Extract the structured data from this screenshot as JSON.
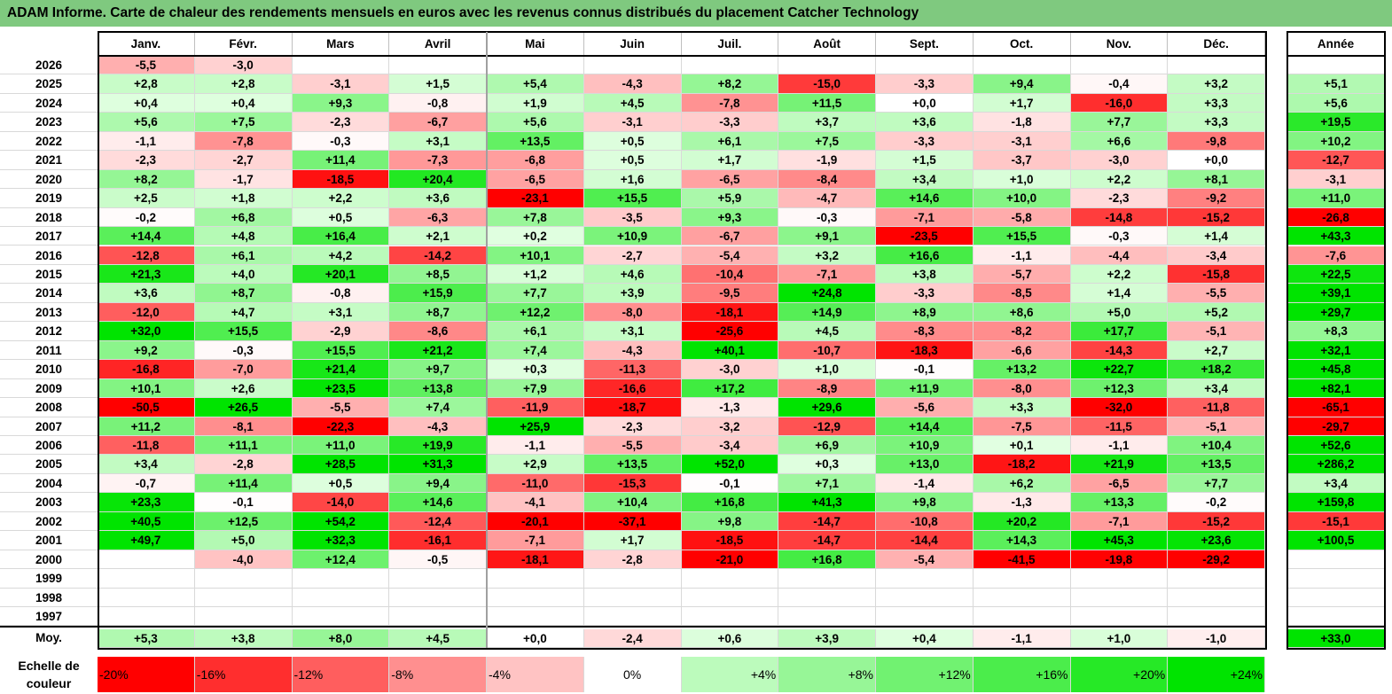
{
  "title": "ADAM Informe. Carte de chaleur des rendements mensuels en euros avec les revenus connus distribués du placement Catcher Technology",
  "colors": {
    "title_bg": "#7fc97f",
    "strong_red": "#ff0000",
    "strong_green": "#00e000",
    "neutral": "#ffffff"
  },
  "chart_data": {
    "type": "heatmap",
    "title": "ADAM Informe. Carte de chaleur des rendements mensuels en euros avec les revenus connus distribués du placement Catcher Technology",
    "months": [
      "Janv.",
      "Févr.",
      "Mars",
      "Avril",
      "Mai",
      "Juin",
      "Juil.",
      "Août",
      "Sept.",
      "Oct.",
      "Nov.",
      "Déc."
    ],
    "year_header": "Année",
    "rows": [
      {
        "year": "2026",
        "months": [
          "-5,5",
          "-3,0",
          "",
          "",
          "",
          "",
          "",
          "",
          "",
          "",
          "",
          ""
        ],
        "annual": ""
      },
      {
        "year": "2025",
        "months": [
          "+2,8",
          "+2,8",
          "-3,1",
          "+1,5",
          "+5,4",
          "-4,3",
          "+8,2",
          "-15,0",
          "-3,3",
          "+9,4",
          "-0,4",
          "+3,2"
        ],
        "annual": "+5,1"
      },
      {
        "year": "2024",
        "months": [
          "+0,4",
          "+0,4",
          "+9,3",
          "-0,8",
          "+1,9",
          "+4,5",
          "-7,8",
          "+11,5",
          "+0,0",
          "+1,7",
          "-16,0",
          "+3,3"
        ],
        "annual": "+5,6"
      },
      {
        "year": "2023",
        "months": [
          "+5,6",
          "+7,5",
          "-2,3",
          "-6,7",
          "+5,6",
          "-3,1",
          "-3,3",
          "+3,7",
          "+3,6",
          "-1,8",
          "+7,7",
          "+3,3"
        ],
        "annual": "+19,5"
      },
      {
        "year": "2022",
        "months": [
          "-1,1",
          "-7,8",
          "-0,3",
          "+3,1",
          "+13,5",
          "+0,5",
          "+6,1",
          "+7,5",
          "-3,3",
          "-3,1",
          "+6,6",
          "-9,8"
        ],
        "annual": "+10,2"
      },
      {
        "year": "2021",
        "months": [
          "-2,3",
          "-2,7",
          "+11,4",
          "-7,3",
          "-6,8",
          "+0,5",
          "+1,7",
          "-1,9",
          "+1,5",
          "-3,7",
          "-3,0",
          "+0,0"
        ],
        "annual": "-12,7"
      },
      {
        "year": "2020",
        "months": [
          "+8,2",
          "-1,7",
          "-18,5",
          "+20,4",
          "-6,5",
          "+1,6",
          "-6,5",
          "-8,4",
          "+3,4",
          "+1,0",
          "+2,2",
          "+8,1"
        ],
        "annual": "-3,1"
      },
      {
        "year": "2019",
        "months": [
          "+2,5",
          "+1,8",
          "+2,2",
          "+3,6",
          "-23,1",
          "+15,5",
          "+5,9",
          "-4,7",
          "+14,6",
          "+10,0",
          "-2,3",
          "-9,2"
        ],
        "annual": "+11,0"
      },
      {
        "year": "2018",
        "months": [
          "-0,2",
          "+6,8",
          "+0,5",
          "-6,3",
          "+7,8",
          "-3,5",
          "+9,3",
          "-0,3",
          "-7,1",
          "-5,8",
          "-14,8",
          "-15,2"
        ],
        "annual": "-26,8"
      },
      {
        "year": "2017",
        "months": [
          "+14,4",
          "+4,8",
          "+16,4",
          "+2,1",
          "+0,2",
          "+10,9",
          "-6,7",
          "+9,1",
          "-23,5",
          "+15,5",
          "-0,3",
          "+1,4"
        ],
        "annual": "+43,3"
      },
      {
        "year": "2016",
        "months": [
          "-12,8",
          "+6,1",
          "+4,2",
          "-14,2",
          "+10,1",
          "-2,7",
          "-5,4",
          "+3,2",
          "+16,6",
          "-1,1",
          "-4,4",
          "-3,4"
        ],
        "annual": "-7,6"
      },
      {
        "year": "2015",
        "months": [
          "+21,3",
          "+4,0",
          "+20,1",
          "+8,5",
          "+1,2",
          "+4,6",
          "-10,4",
          "-7,1",
          "+3,8",
          "-5,7",
          "+2,2",
          "-15,8"
        ],
        "annual": "+22,5"
      },
      {
        "year": "2014",
        "months": [
          "+3,6",
          "+8,7",
          "-0,8",
          "+15,9",
          "+7,7",
          "+3,9",
          "-9,5",
          "+24,8",
          "-3,3",
          "-8,5",
          "+1,4",
          "-5,5"
        ],
        "annual": "+39,1"
      },
      {
        "year": "2013",
        "months": [
          "-12,0",
          "+4,7",
          "+3,1",
          "+8,7",
          "+12,2",
          "-8,0",
          "-18,1",
          "+14,9",
          "+8,9",
          "+8,6",
          "+5,0",
          "+5,2"
        ],
        "annual": "+29,7"
      },
      {
        "year": "2012",
        "months": [
          "+32,0",
          "+15,5",
          "-2,9",
          "-8,6",
          "+6,1",
          "+3,1",
          "-25,6",
          "+4,5",
          "-8,3",
          "-8,2",
          "+17,7",
          "-5,1"
        ],
        "annual": "+8,3"
      },
      {
        "year": "2011",
        "months": [
          "+9,2",
          "-0,3",
          "+15,5",
          "+21,2",
          "+7,4",
          "-4,3",
          "+40,1",
          "-10,7",
          "-18,3",
          "-6,6",
          "-14,3",
          "+2,7"
        ],
        "annual": "+32,1"
      },
      {
        "year": "2010",
        "months": [
          "-16,8",
          "-7,0",
          "+21,4",
          "+9,7",
          "+0,3",
          "-11,3",
          "-3,0",
          "+1,0",
          "-0,1",
          "+13,2",
          "+22,7",
          "+18,2"
        ],
        "annual": "+45,8"
      },
      {
        "year": "2009",
        "months": [
          "+10,1",
          "+2,6",
          "+23,5",
          "+13,8",
          "+7,9",
          "-16,6",
          "+17,2",
          "-8,9",
          "+11,9",
          "-8,0",
          "+12,3",
          "+3,4"
        ],
        "annual": "+82,1"
      },
      {
        "year": "2008",
        "months": [
          "-50,5",
          "+26,5",
          "-5,5",
          "+7,4",
          "-11,9",
          "-18,7",
          "-1,3",
          "+29,6",
          "-5,6",
          "+3,3",
          "-32,0",
          "-11,8"
        ],
        "annual": "-65,1"
      },
      {
        "year": "2007",
        "months": [
          "+11,2",
          "-8,1",
          "-22,3",
          "-4,3",
          "+25,9",
          "-2,3",
          "-3,2",
          "-12,9",
          "+14,4",
          "-7,5",
          "-11,5",
          "-5,1"
        ],
        "annual": "-29,7"
      },
      {
        "year": "2006",
        "months": [
          "-11,8",
          "+11,1",
          "+11,0",
          "+19,9",
          "-1,1",
          "-5,5",
          "-3,4",
          "+6,9",
          "+10,9",
          "+0,1",
          "-1,1",
          "+10,4"
        ],
        "annual": "+52,6"
      },
      {
        "year": "2005",
        "months": [
          "+3,4",
          "-2,8",
          "+28,5",
          "+31,3",
          "+2,9",
          "+13,5",
          "+52,0",
          "+0,3",
          "+13,0",
          "-18,2",
          "+21,9",
          "+13,5"
        ],
        "annual": "+286,2"
      },
      {
        "year": "2004",
        "months": [
          "-0,7",
          "+11,4",
          "+0,5",
          "+9,4",
          "-11,0",
          "-15,3",
          "-0,1",
          "+7,1",
          "-1,4",
          "+6,2",
          "-6,5",
          "+7,7"
        ],
        "annual": "+3,4"
      },
      {
        "year": "2003",
        "months": [
          "+23,3",
          "-0,1",
          "-14,0",
          "+14,6",
          "-4,1",
          "+10,4",
          "+16,8",
          "+41,3",
          "+9,8",
          "-1,3",
          "+13,3",
          "-0,2"
        ],
        "annual": "+159,8"
      },
      {
        "year": "2002",
        "months": [
          "+40,5",
          "+12,5",
          "+54,2",
          "-12,4",
          "-20,1",
          "-37,1",
          "+9,8",
          "-14,7",
          "-10,8",
          "+20,2",
          "-7,1",
          "-15,2"
        ],
        "annual": "-15,1"
      },
      {
        "year": "2001",
        "months": [
          "+49,7",
          "+5,0",
          "+32,3",
          "-16,1",
          "-7,1",
          "+1,7",
          "-18,5",
          "-14,7",
          "-14,4",
          "+14,3",
          "+45,3",
          "+23,6"
        ],
        "annual": "+100,5"
      },
      {
        "year": "2000",
        "months": [
          "",
          "-4,0",
          "+12,4",
          "-0,5",
          "-18,1",
          "-2,8",
          "-21,0",
          "+16,8",
          "-5,4",
          "-41,5",
          "-19,8",
          "-29,2"
        ],
        "annual": ""
      },
      {
        "year": "1999",
        "months": [
          "",
          "",
          "",
          "",
          "",
          "",
          "",
          "",
          "",
          "",
          "",
          ""
        ],
        "annual": ""
      },
      {
        "year": "1998",
        "months": [
          "",
          "",
          "",
          "",
          "",
          "",
          "",
          "",
          "",
          "",
          "",
          ""
        ],
        "annual": ""
      },
      {
        "year": "1997",
        "months": [
          "",
          "",
          "",
          "",
          "",
          "",
          "",
          "",
          "",
          "",
          "",
          ""
        ],
        "annual": ""
      }
    ],
    "average": {
      "label": "Moy.",
      "months": [
        "+5,3",
        "+3,8",
        "+8,0",
        "+4,5",
        "+0,0",
        "-2,4",
        "+0,6",
        "+3,9",
        "+0,4",
        "-1,1",
        "+1,0",
        "-1,0"
      ],
      "annual": "+33,0"
    },
    "scale": {
      "label": "Echelle de couleur",
      "stops": [
        "-20%",
        "-16%",
        "-12%",
        "-8%",
        "-4%",
        "0%",
        "+4%",
        "+8%",
        "+12%",
        "+16%",
        "+20%",
        "+24%"
      ]
    }
  }
}
